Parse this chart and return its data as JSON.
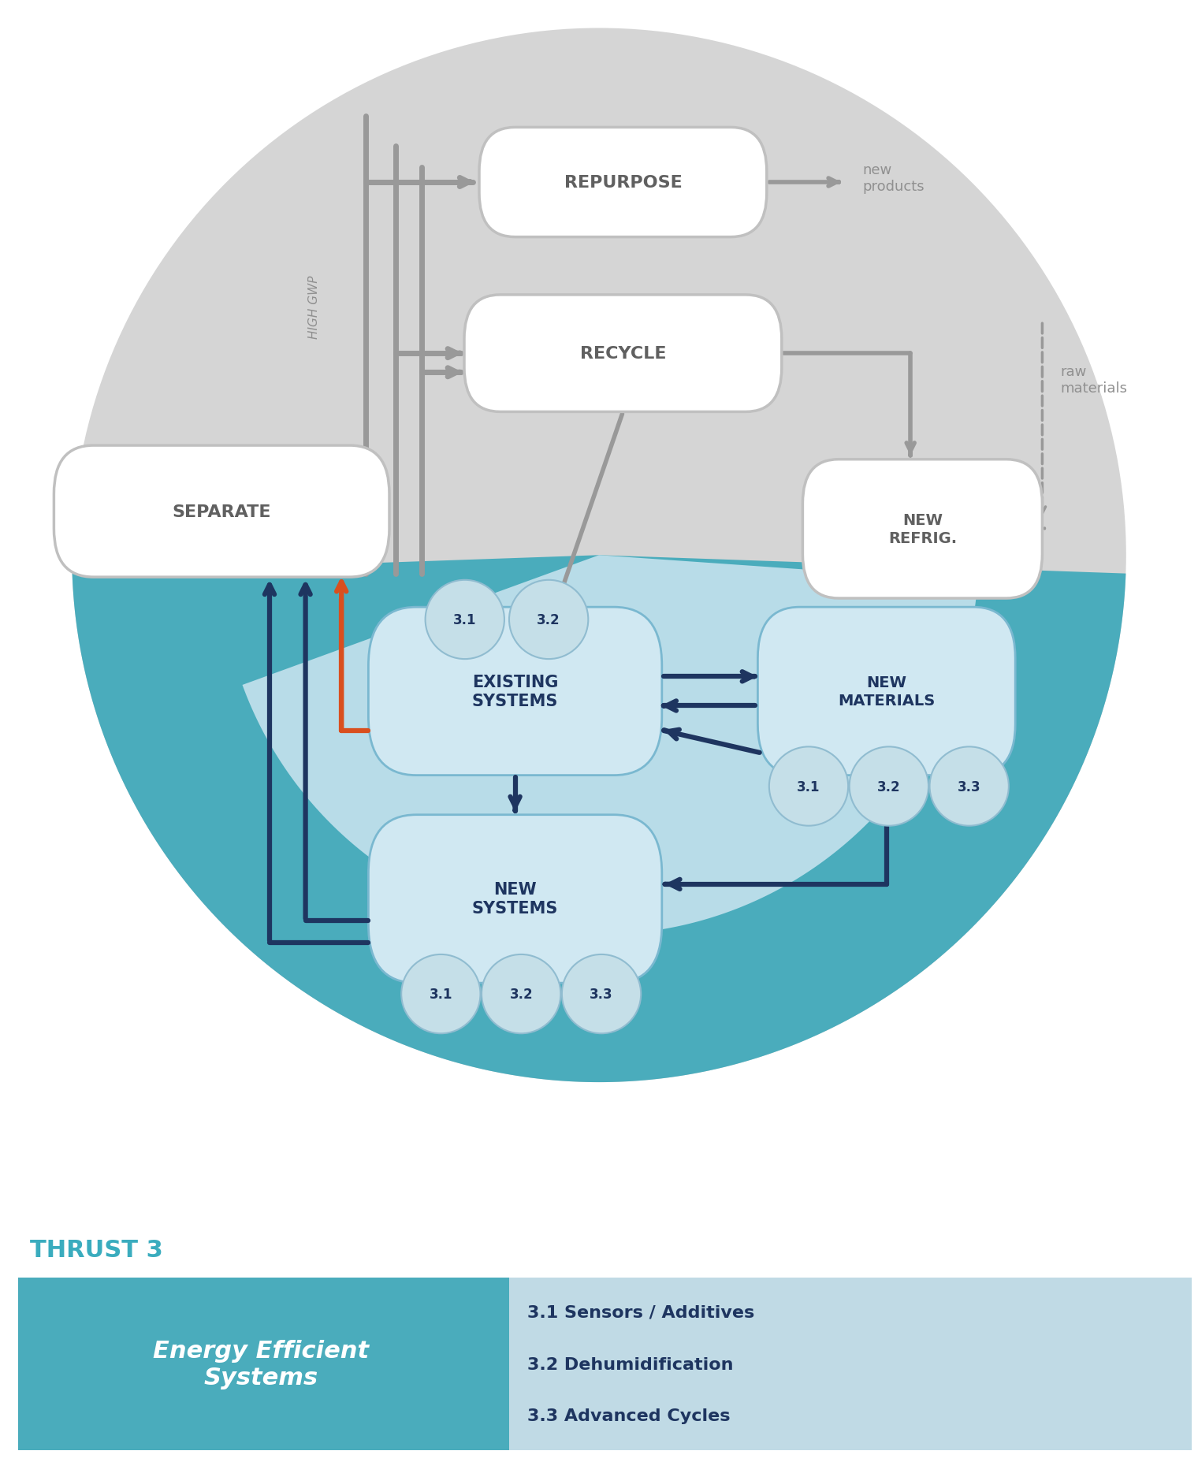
{
  "fig_w": 15.2,
  "fig_h": 18.56,
  "dpi": 100,
  "bg": "#ffffff",
  "gray_circle_color": "#d5d5d5",
  "teal_color": "#4aacbc",
  "light_teal_color": "#8ecfde",
  "pale_blue_color": "#b8dce8",
  "navy": "#1e3560",
  "orange": "#d94f1e",
  "gray_arrow": "#999999",
  "gray_text": "#909090",
  "dark_gray_text": "#606060",
  "white_node_ec": "#c0c0c0",
  "blue_node_fc": "#d0e8f2",
  "blue_node_ec": "#7ab8d0",
  "bubble_fc": "#c5dfe8",
  "bubble_ec": "#90bcd0",
  "thrust3_color": "#3aacbe",
  "left_bar_color": "#4aacbc",
  "right_bar_color": "#c0dae5",
  "steps_color": "#1e3560",
  "left_label": "Energy Efficient\nSystems",
  "thrust_label": "THRUST 3",
  "steps": [
    "3.1 Sensors / Additives",
    "3.2 Dehumidification",
    "3.3 Advanced Cycles"
  ],
  "new_products": "new\nproducts",
  "raw_materials": "raw\nmaterials",
  "high_gwp": "HIGH GWP"
}
